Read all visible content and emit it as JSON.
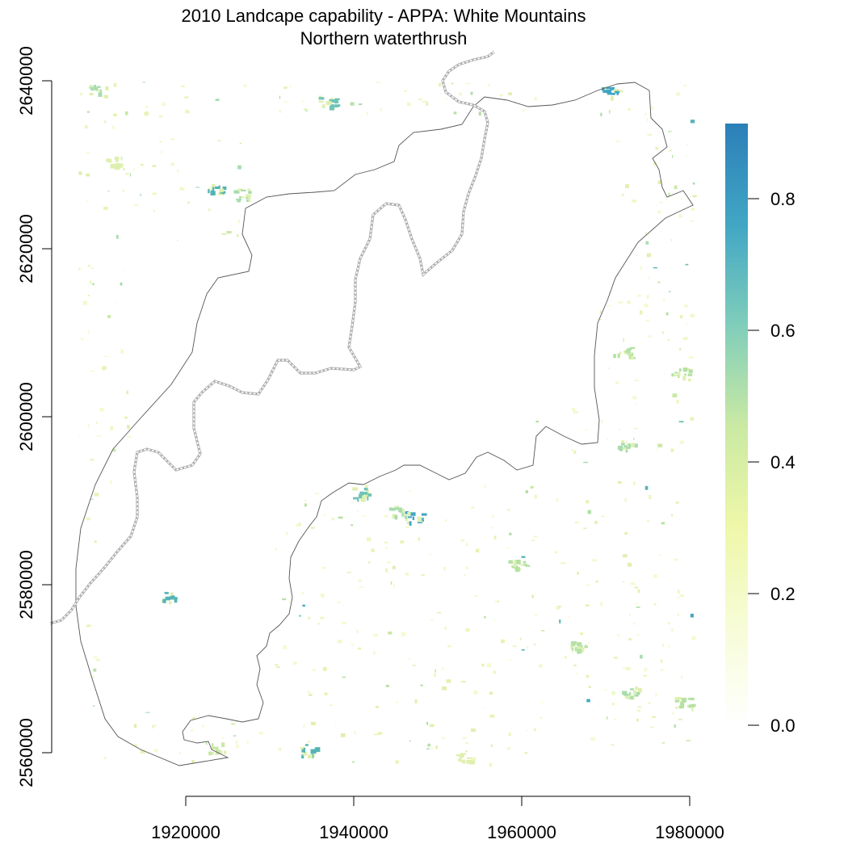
{
  "title": {
    "line1": "2010 Landcape capability - APPA: White Mountains",
    "line2": "Northern waterthrush"
  },
  "map": {
    "x_axis_ticks": [
      "1920000",
      "1940000",
      "1960000",
      "1980000"
    ],
    "y_axis_ticks": [
      "2560000",
      "2580000",
      "2600000",
      "2620000",
      "2640000"
    ],
    "x_range": [
      1906500,
      1980000
    ],
    "y_range": [
      2558000,
      2641000
    ]
  },
  "legend": {
    "ticks": [
      "0.0",
      "0.2",
      "0.4",
      "0.6",
      "0.8"
    ],
    "range": [
      0.0,
      0.9
    ],
    "colors": [
      "#ffffff",
      "#f7fcd6",
      "#eef7a8",
      "#c9e9a3",
      "#7fcdbb",
      "#41a6c4",
      "#2c7fb8"
    ]
  },
  "colors": {
    "boundary": "#555555",
    "trail": "#aaaaaa"
  }
}
